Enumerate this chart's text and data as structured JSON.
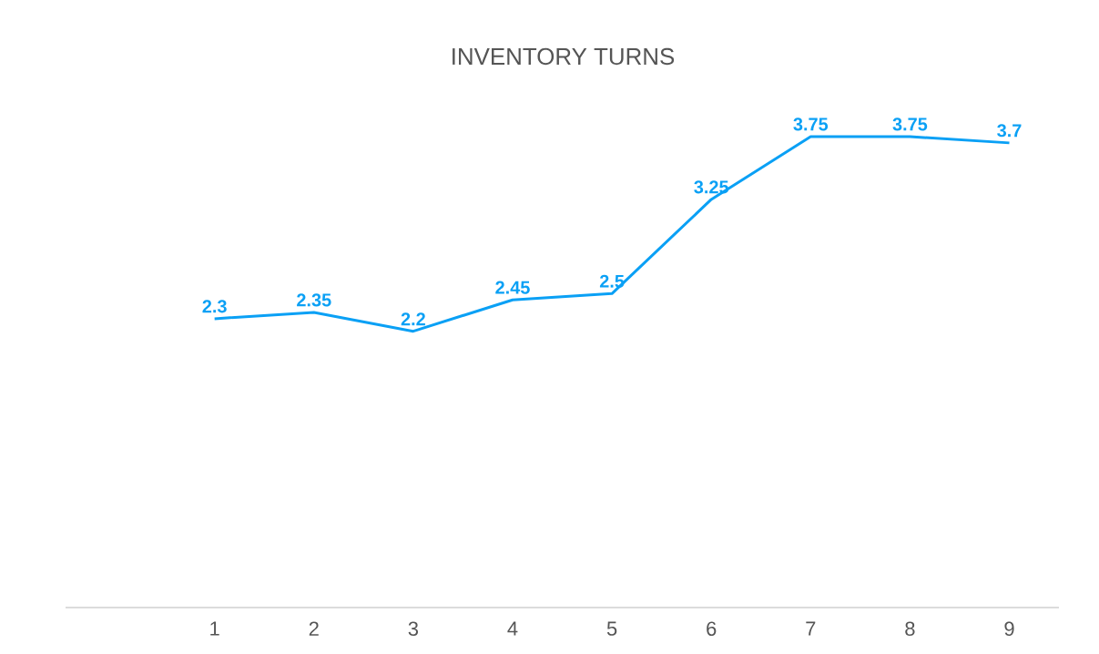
{
  "chart_data": {
    "type": "line",
    "title": "INVENTORY TURNS",
    "categories": [
      "1",
      "2",
      "3",
      "4",
      "5",
      "6",
      "7",
      "8",
      "9"
    ],
    "values": [
      2.3,
      2.35,
      2.2,
      2.45,
      2.5,
      3.25,
      3.75,
      3.75,
      3.7
    ],
    "color": "#0aa0f5",
    "data_labels": true,
    "tick_labels": "x",
    "line_style": "solid"
  }
}
